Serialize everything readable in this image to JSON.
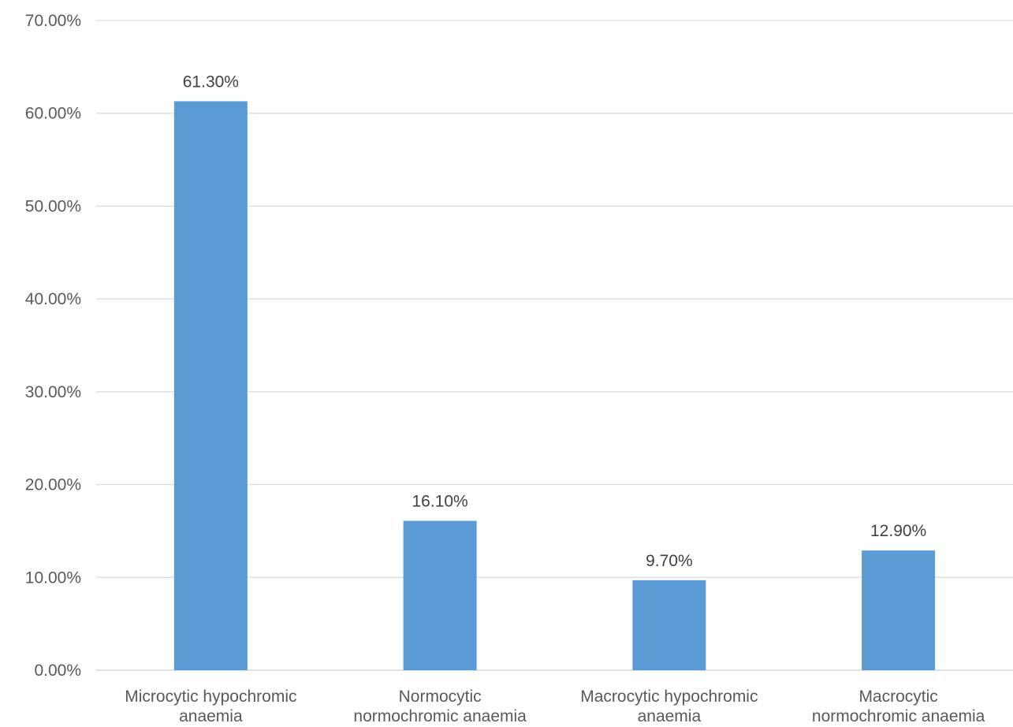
{
  "chart_data": {
    "type": "bar",
    "title": "",
    "xlabel": "",
    "ylabel": "",
    "categories": [
      [
        "Microcytic hypochromic",
        "anaemia"
      ],
      [
        "Normocytic",
        "normochromic anaemia"
      ],
      [
        "Macrocytic hypochromic",
        "anaemia"
      ],
      [
        "Macrocytic",
        "normochromic anaemia"
      ]
    ],
    "values": [
      61.3,
      16.1,
      9.7,
      12.9
    ],
    "data_labels": [
      "61.30%",
      "16.10%",
      "9.70%",
      "12.90%"
    ],
    "ylim": [
      0,
      70
    ],
    "yticks": [
      0,
      10,
      20,
      30,
      40,
      50,
      60,
      70
    ],
    "ytick_labels": [
      "0.00%",
      "10.00%",
      "20.00%",
      "30.00%",
      "40.00%",
      "50.00%",
      "60.00%",
      "70.00%"
    ],
    "grid": true,
    "legend": "none",
    "colors": {
      "bar": "#5b9bd5",
      "grid": "#d9d9d9",
      "tick_text": "#595959",
      "data_label_text": "#404040"
    }
  }
}
